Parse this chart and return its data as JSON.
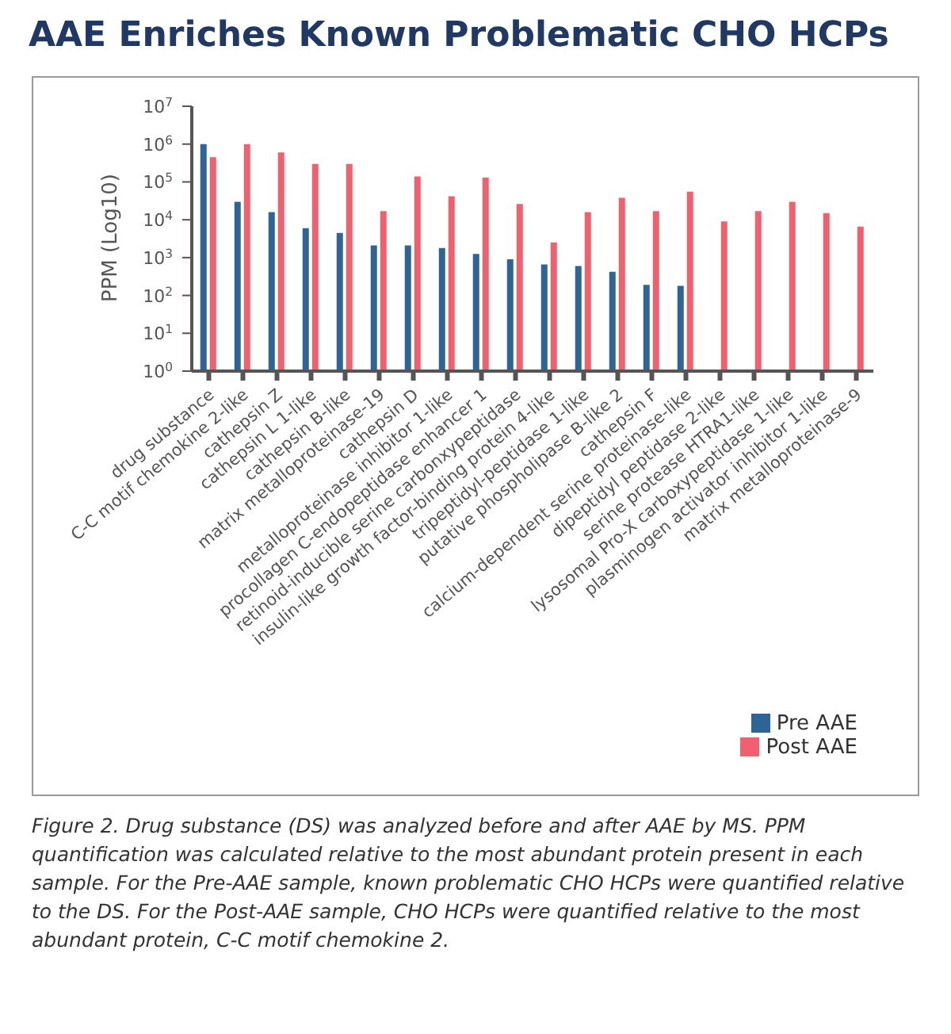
{
  "chart_data": {
    "type": "bar",
    "title": "AAE Enriches Known Problematic CHO HCPs",
    "categories": [
      "drug substance",
      "C-C motif chemokine 2-like",
      "cathepsin Z",
      "cathepsin L 1-like",
      "cathepsin B-like",
      "matrix metalloproteinase-19",
      "cathepsin D",
      "metalloproteinase inhibitor 1-like",
      "procollagen C-endopeptidase enhancer 1",
      "retinoid-inducible serine carbonxypeptidase",
      "insulin-like growth factor-binding protein 4-like",
      "tripeptidyl-peptidase 1-like",
      "putative phospholipase B-like 2",
      "cathepsin F",
      "calcium-dependent serine proteinase-like",
      "dipeptidyl peptidase 2-like",
      "serine protease HTRA1-like",
      "lysosomal Pro-X carboxypeptidase 1-like",
      "plasminogen activator inhibitor 1-like",
      "matrix metalloproteinase-9"
    ],
    "series": [
      {
        "name": "Pre AAE",
        "color": "#2e6596",
        "values": [
          1000000,
          30000,
          16000,
          6000,
          4500,
          2100,
          2100,
          1800,
          1250,
          900,
          660,
          600,
          420,
          190,
          180,
          null,
          null,
          null,
          null,
          null
        ]
      },
      {
        "name": "Post AAE",
        "color": "#f0606e",
        "values": [
          450000,
          1000000,
          600000,
          300000,
          300000,
          17000,
          140000,
          42000,
          130000,
          26000,
          2500,
          16000,
          38000,
          17000,
          55000,
          9000,
          17000,
          30000,
          15000,
          6600
        ]
      }
    ],
    "ylabel": "PPM (Log10)",
    "log": "y",
    "ylim": [
      1,
      10000000
    ],
    "yticks": [
      {
        "value": 1,
        "label": "10$^{0}$"
      },
      {
        "value": 10,
        "label": "10$^{1}$"
      },
      {
        "value": 100,
        "label": "10$^{2}$"
      },
      {
        "value": 1000,
        "label": "10$^{3}$"
      },
      {
        "value": 10000,
        "label": "10$^{4}$"
      },
      {
        "value": 100000,
        "label": "10$^{5}$"
      },
      {
        "value": 1000000,
        "label": "10$^{6}$"
      },
      {
        "value": 10000000,
        "label": "10$^{7}$"
      }
    ],
    "grid": false,
    "legend": "bottom right",
    "annotations": [
      "Figure 2. Drug substance (DS) was analyzed before and after AAE by MS. PPM quantification was calculated relative to the most abundant protein present in each sample. For the Pre-AAE sample, known problematic CHO HCPs were quantified relative to the DS. For the Post-AAE sample, CHO HCPs were quantified relative to the most abundant protein, C-C motif chemokine 2."
    ]
  }
}
